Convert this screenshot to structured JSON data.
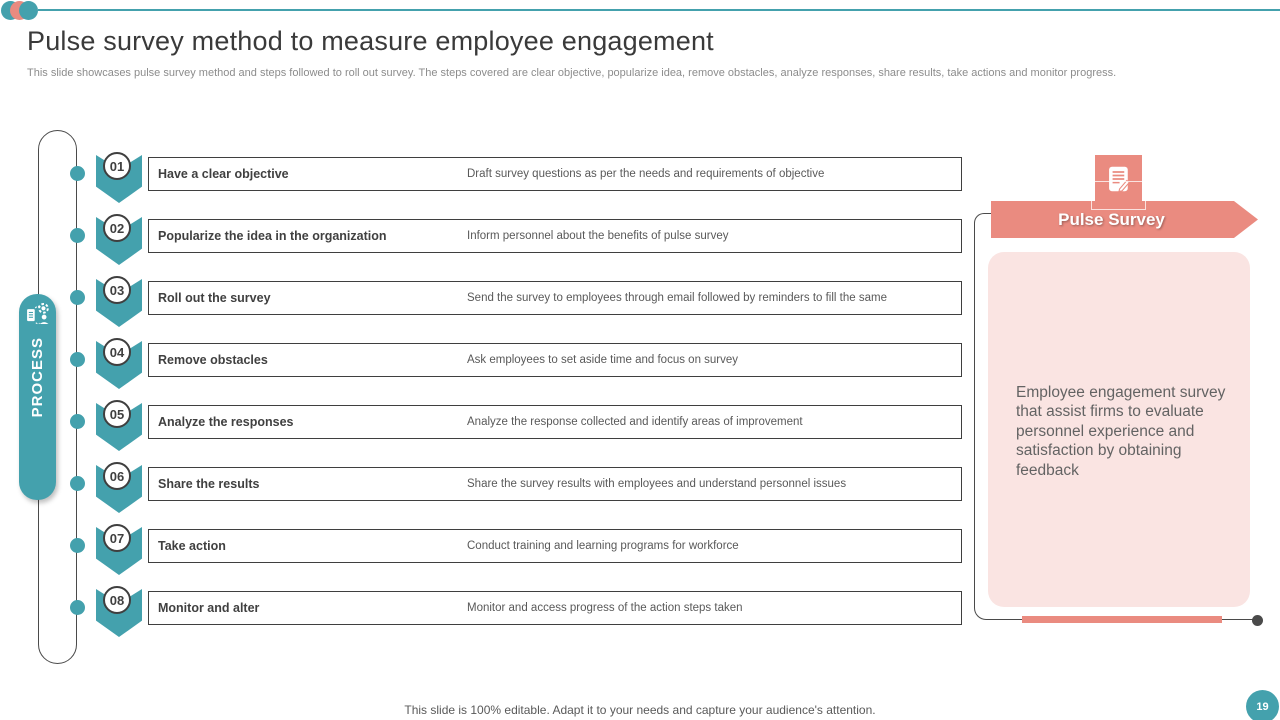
{
  "slide": {
    "title": "Pulse survey method to measure employee engagement",
    "subtitle": "This slide showcases pulse survey method and steps followed to roll out survey.  The steps covered are clear objective, popularize idea, remove obstacles, analyze responses, share results, take actions and monitor progress.",
    "footer": "This slide is 100% editable. Adapt it to your needs and capture your audience's attention.",
    "page_number": "19"
  },
  "process": {
    "label": "PROCESS",
    "icon": "process-gear-people-icon"
  },
  "steps": [
    {
      "num": "01",
      "title": "Have a clear objective",
      "desc": "Draft survey questions as per the needs and requirements of objective"
    },
    {
      "num": "02",
      "title": "Popularize the idea in the organization",
      "desc": "Inform personnel about the benefits of pulse survey"
    },
    {
      "num": "03",
      "title": "Roll out the survey",
      "desc": "Send the survey to employees through email followed by reminders to fill the same"
    },
    {
      "num": "04",
      "title": "Remove obstacles",
      "desc": "Ask employees to set aside time and focus on survey"
    },
    {
      "num": "05",
      "title": "Analyze the responses",
      "desc": "Analyze the response collected and identify areas of improvement"
    },
    {
      "num": "06",
      "title": "Share the results",
      "desc": "Share the survey results with employees and understand personnel issues"
    },
    {
      "num": "07",
      "title": "Take action",
      "desc": "Conduct training and learning programs for workforce"
    },
    {
      "num": "08",
      "title": "Monitor and alter",
      "desc": "Monitor and access progress of the action steps taken"
    }
  ],
  "callout": {
    "banner_label": "Pulse Survey",
    "tile_icon": "survey-document-icon",
    "description": "Employee engagement survey that assist firms to evaluate personnel experience and satisfaction by obtaining feedback"
  },
  "colors": {
    "teal": "#44A1AD",
    "salmon": "#EA8B80",
    "light_pink": "#FAE4E2",
    "dark_text": "#3F3F3F",
    "gray_text": "#595959"
  }
}
